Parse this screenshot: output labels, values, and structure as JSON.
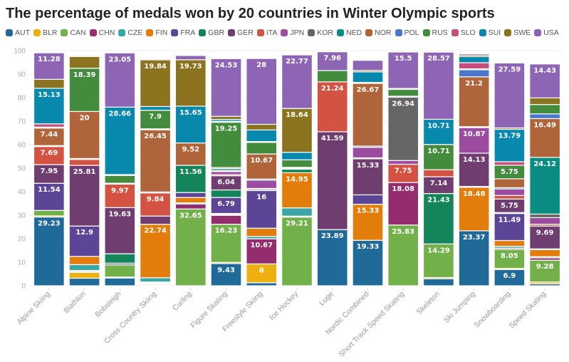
{
  "chart_data": {
    "type": "bar",
    "stacked": true,
    "title": "The percentage of medals won by 20 countries in Winter Olympic sports",
    "xlabel": "",
    "ylabel": "",
    "ylim": [
      0,
      100
    ],
    "yticks": [
      0,
      10,
      20,
      30,
      40,
      50,
      60,
      70,
      80,
      90,
      100
    ],
    "grid": true,
    "legend_position": "top-left",
    "categories": [
      "Alpine Skiing",
      "Biathlon",
      "Bobsleigh",
      "Cross Country Skiing",
      "Curling",
      "Figure Skating",
      "Freestyle Skiing",
      "Ice Hockey",
      "Luge",
      "Nordic Combined",
      "Short Track Speed Skating",
      "Skeleton",
      "Ski Jumping",
      "Snowboarding",
      "Speed Skating"
    ],
    "colors": {
      "AUT": "#1f6a99",
      "BLR": "#eeb00f",
      "CAN": "#72b04a",
      "CHN": "#942d6e",
      "CZE": "#3aa6a6",
      "FIN": "#e27d0c",
      "FRA": "#5c4596",
      "GBR": "#14845a",
      "GER": "#6f3d6f",
      "ITA": "#d35241",
      "JPN": "#9b4c9f",
      "KOR": "#666666",
      "NED": "#0b8c82",
      "NOR": "#b0643a",
      "POL": "#4a77cc",
      "RUS": "#438c3e",
      "SLO": "#c54e7c",
      "SUI": "#0888ad",
      "SWE": "#8c7320",
      "USA": "#8d65b4"
    },
    "series": [
      {
        "name": "AUT",
        "values": [
          29.23,
          3.2,
          3.3,
          0.4,
          0,
          9.43,
          1.3,
          0,
          23.89,
          19.33,
          0,
          3,
          23.37,
          6.9,
          0.8
        ]
      },
      {
        "name": "BLR",
        "values": [
          0.5,
          2.5,
          0.4,
          0.4,
          0,
          0.5,
          8,
          0,
          0,
          0,
          0,
          0.5,
          0,
          0.5,
          0.8
        ]
      },
      {
        "name": "CAN",
        "values": [
          2.3,
          0.4,
          5.2,
          0.4,
          32.65,
          16.23,
          0,
          29.21,
          0,
          0,
          25.83,
          14.29,
          0,
          8.05,
          9.28
        ]
      },
      {
        "name": "CHN",
        "values": [
          0,
          0.4,
          0,
          0.4,
          2.1,
          3.8,
          10.67,
          0.4,
          0,
          0,
          18.08,
          0,
          0,
          0.5,
          1
        ]
      },
      {
        "name": "CZE",
        "values": [
          0,
          2.5,
          0,
          1.8,
          0.5,
          0.4,
          1,
          3.5,
          0,
          0,
          0,
          0,
          0,
          0.8,
          0.5
        ]
      },
      {
        "name": "FIN",
        "values": [
          0,
          3.5,
          0,
          22.74,
          2.3,
          0.4,
          3.5,
          14.95,
          0,
          15.33,
          0,
          0,
          18.48,
          2.5,
          3
        ]
      },
      {
        "name": "FRA",
        "values": [
          11.54,
          12.9,
          0.7,
          0,
          2.1,
          6.79,
          16,
          0,
          0,
          4,
          0,
          0,
          0.4,
          11.49,
          0
        ]
      },
      {
        "name": "GBR",
        "values": [
          0,
          0,
          4,
          0,
          11.56,
          3.2,
          0,
          1.5,
          0,
          0,
          0,
          21.43,
          0,
          0.4,
          0.3
        ]
      },
      {
        "name": "GER",
        "values": [
          7.95,
          25.81,
          19.63,
          3.5,
          0,
          6.04,
          0.5,
          0.4,
          41.59,
          15.33,
          0,
          7.14,
          14.13,
          5.75,
          9.69
        ]
      },
      {
        "name": "ITA",
        "values": [
          7.69,
          2.5,
          9.97,
          9.84,
          0,
          0.5,
          0.4,
          0,
          21.24,
          0.4,
          7.75,
          3,
          0,
          1.5,
          0.8
        ]
      },
      {
        "name": "JPN",
        "values": [
          0,
          0,
          0,
          0,
          0,
          1.3,
          3.5,
          0,
          0,
          4.5,
          1.6,
          0,
          10.87,
          2.8,
          2.8
        ]
      },
      {
        "name": "KOR",
        "values": [
          0,
          0,
          0,
          0,
          0,
          0.4,
          0,
          0,
          0,
          0,
          26.94,
          0,
          0,
          0,
          1.5
        ]
      },
      {
        "name": "NED",
        "values": [
          0.4,
          0.4,
          0.4,
          0.4,
          0,
          0.8,
          0.5,
          0.4,
          0,
          0.5,
          0,
          0,
          0.4,
          0.5,
          24.12
        ]
      },
      {
        "name": "NOR",
        "values": [
          7.44,
          20,
          0,
          26.45,
          9.52,
          0.5,
          10.67,
          0,
          0,
          26.67,
          0,
          0,
          21.2,
          3.8,
          16.49
        ]
      },
      {
        "name": "POL",
        "values": [
          0.4,
          0,
          0,
          0.4,
          0,
          0,
          0,
          0,
          0,
          0.4,
          0.4,
          0,
          3,
          0,
          2
        ]
      },
      {
        "name": "RUS",
        "values": [
          0,
          18.39,
          3.3,
          7.9,
          0,
          19.25,
          4.9,
          3.2,
          4.8,
          0,
          2.9,
          10.71,
          0.4,
          5.75,
          4
        ]
      },
      {
        "name": "SLO",
        "values": [
          1.4,
          0,
          0.4,
          0,
          0,
          0.4,
          0.4,
          0,
          0,
          0,
          0,
          0,
          2.6,
          1.5,
          0
        ]
      },
      {
        "name": "SUI",
        "values": [
          15.13,
          0,
          28.66,
          1.6,
          15.65,
          0.8,
          4.9,
          3.2,
          0,
          4.5,
          0.4,
          10.71,
          2.6,
          13.79,
          0
        ]
      },
      {
        "name": "SWE",
        "values": [
          3.8,
          5,
          0,
          19.84,
          19.73,
          1.3,
          2.4,
          18.64,
          0,
          0.6,
          0,
          0,
          0.6,
          0.6,
          2.8
        ]
      },
      {
        "name": "USA",
        "values": [
          11.28,
          0.4,
          23.05,
          0.4,
          1.8,
          24.53,
          28,
          22.77,
          7.96,
          4.3,
          15.5,
          28.57,
          0.6,
          27.59,
          14.43
        ]
      }
    ]
  }
}
